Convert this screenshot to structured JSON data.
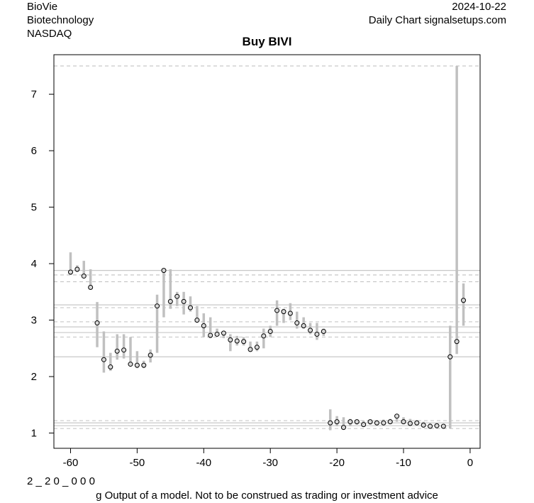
{
  "header": {
    "company": "BioVie",
    "sector": "Biotechnology",
    "exchange": "NASDAQ",
    "date": "2024-10-22",
    "source": "Daily Chart signalsetups.com"
  },
  "footer": {
    "code": "2 _ 2 0 _ 0 0 0",
    "disclaimer": "g Output of a model. Not to be construed as trading or investment advice"
  },
  "chart_data": {
    "type": "scatter",
    "title": "Buy BIVI",
    "xlabel": "",
    "ylabel": "",
    "xlim": [
      -62.5,
      1.5
    ],
    "ylim": [
      0.73,
      7.7
    ],
    "x_ticks": [
      -60,
      -50,
      -40,
      -30,
      -20,
      -10,
      0
    ],
    "y_ticks": [
      1,
      2,
      3,
      4,
      5,
      6,
      7
    ],
    "grid": false,
    "colors": {
      "range_bar": "#c0c0c0",
      "solid_line": "#c8c8c8",
      "dashed_line": "#c8c8c8",
      "point": "#000000"
    },
    "horizontal_lines": [
      {
        "y": 7.5,
        "style": "dashed"
      },
      {
        "y": 3.88,
        "style": "solid"
      },
      {
        "y": 3.8,
        "style": "dashed"
      },
      {
        "y": 3.68,
        "style": "dashed"
      },
      {
        "y": 3.27,
        "style": "solid"
      },
      {
        "y": 3.22,
        "style": "dashed"
      },
      {
        "y": 2.97,
        "style": "dashed"
      },
      {
        "y": 2.88,
        "style": "solid"
      },
      {
        "y": 2.78,
        "style": "solid"
      },
      {
        "y": 2.7,
        "style": "dashed"
      },
      {
        "y": 2.35,
        "style": "solid"
      },
      {
        "y": 1.22,
        "style": "dashed"
      },
      {
        "y": 1.18,
        "style": "solid"
      },
      {
        "y": 1.13,
        "style": "solid"
      },
      {
        "y": 1.08,
        "style": "dashed"
      }
    ],
    "x": [
      -60,
      -59,
      -58,
      -57,
      -56,
      -55,
      -54,
      -53,
      -52,
      -51,
      -50,
      -49,
      -48,
      -47,
      -46,
      -45,
      -44,
      -43,
      -42,
      -41,
      -40,
      -39,
      -38,
      -37,
      -36,
      -35,
      -34,
      -33,
      -32,
      -31,
      -30,
      -29,
      -28,
      -27,
      -26,
      -25,
      -24,
      -23,
      -22,
      -21,
      -20,
      -19,
      -18,
      -17,
      -16,
      -15,
      -14,
      -13,
      -12,
      -11,
      -10,
      -9,
      -8,
      -7,
      -6,
      -5,
      -4,
      -3,
      -2,
      -1
    ],
    "high": [
      4.2,
      3.97,
      4.05,
      3.9,
      3.32,
      2.8,
      2.42,
      2.75,
      2.75,
      2.7,
      2.45,
      2.28,
      2.48,
      3.45,
      3.88,
      3.9,
      3.5,
      3.5,
      3.42,
      3.25,
      3.12,
      3.05,
      2.85,
      2.8,
      2.75,
      2.72,
      2.7,
      2.62,
      2.62,
      2.85,
      2.9,
      3.35,
      3.2,
      3.3,
      3.15,
      3.05,
      2.95,
      2.95,
      2.85,
      1.42,
      1.3,
      1.28,
      1.25,
      1.24,
      1.22,
      1.24,
      1.23,
      1.24,
      1.25,
      1.32,
      1.28,
      1.25,
      1.23,
      1.2,
      1.18,
      1.15,
      1.14,
      2.9,
      7.5,
      3.65
    ],
    "low": [
      3.8,
      3.85,
      3.75,
      3.55,
      2.52,
      2.07,
      2.1,
      2.3,
      2.32,
      2.18,
      2.15,
      2.15,
      2.25,
      2.42,
      3.05,
      3.2,
      3.25,
      3.1,
      3.15,
      2.95,
      2.7,
      2.68,
      2.72,
      2.68,
      2.45,
      2.55,
      2.55,
      2.45,
      2.45,
      2.5,
      2.7,
      2.9,
      2.95,
      3.0,
      2.85,
      2.85,
      2.75,
      2.65,
      2.72,
      1.05,
      1.12,
      1.08,
      1.12,
      1.15,
      1.12,
      1.15,
      1.14,
      1.15,
      1.18,
      1.2,
      1.17,
      1.13,
      1.14,
      1.12,
      1.09,
      1.08,
      1.08,
      1.08,
      2.4,
      2.9
    ],
    "close": [
      3.85,
      3.9,
      3.78,
      3.58,
      2.95,
      2.3,
      2.17,
      2.45,
      2.47,
      2.22,
      2.2,
      2.2,
      2.38,
      3.25,
      3.88,
      3.33,
      3.42,
      3.33,
      3.22,
      3.0,
      2.9,
      2.73,
      2.75,
      2.77,
      2.65,
      2.63,
      2.62,
      2.48,
      2.52,
      2.72,
      2.8,
      3.17,
      3.15,
      3.12,
      2.95,
      2.9,
      2.82,
      2.75,
      2.8,
      1.18,
      1.2,
      1.1,
      1.2,
      1.2,
      1.15,
      1.2,
      1.18,
      1.18,
      1.2,
      1.3,
      1.2,
      1.17,
      1.18,
      1.14,
      1.12,
      1.13,
      1.12,
      2.35,
      2.62,
      3.35
    ]
  }
}
